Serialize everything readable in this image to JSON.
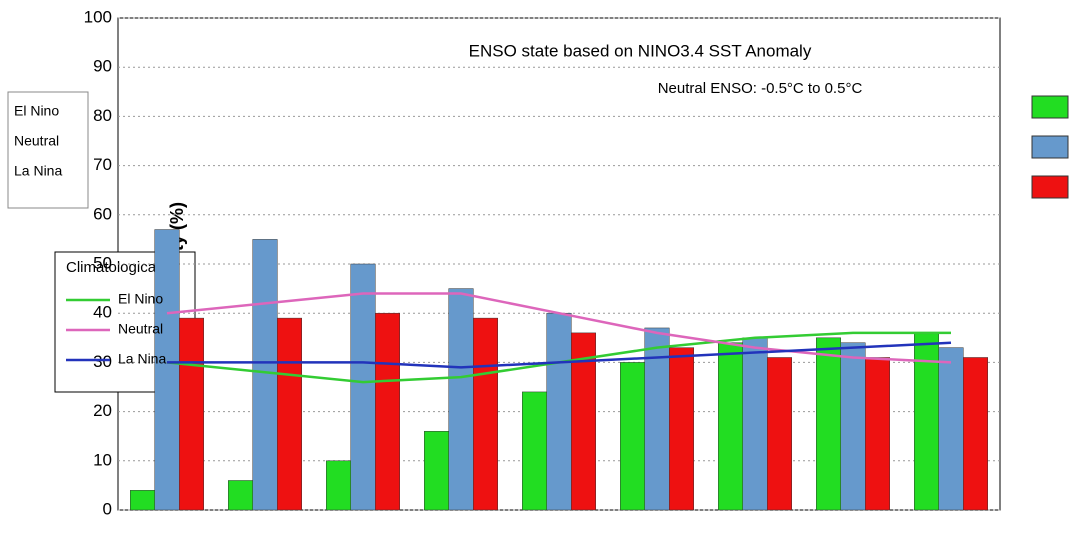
{
  "chart_data": {
    "type": "bar",
    "title": "ENSO state based on NINO3.4 SST Anomaly",
    "subtitle": "Neutral ENSO: -0.5°C to 0.5°C",
    "y_label": "Probability (%)",
    "climatology_legend_title": "Climatological",
    "categories": [
      null,
      null,
      null,
      null,
      null,
      null,
      null,
      null,
      null
    ],
    "ylim": [
      0,
      100
    ],
    "yticks": [
      0,
      10,
      20,
      30,
      40,
      50,
      60,
      70,
      80,
      90,
      100
    ],
    "grid": true,
    "series": [
      {
        "name": "El Nino",
        "color": "#22dd22",
        "kind": "bar",
        "values": [
          4,
          6,
          10,
          16,
          24,
          30,
          34,
          35,
          36
        ]
      },
      {
        "name": "Neutral",
        "color": "#6699cc",
        "kind": "bar",
        "values": [
          57,
          55,
          50,
          45,
          40,
          37,
          35,
          34,
          33
        ]
      },
      {
        "name": "La Nina",
        "color": "#ee1111",
        "kind": "bar",
        "values": [
          39,
          39,
          40,
          39,
          36,
          33,
          31,
          31,
          31
        ]
      },
      {
        "name": "El Nino",
        "color": "#33cc33",
        "kind": "line",
        "values": [
          30,
          28,
          26,
          27,
          30,
          33,
          35,
          36,
          36
        ]
      },
      {
        "name": "Neutral",
        "color": "#dd66bb",
        "kind": "line",
        "values": [
          40,
          42,
          44,
          44,
          40,
          36,
          33,
          31,
          30
        ]
      },
      {
        "name": "La Nina",
        "color": "#2233bb",
        "kind": "line",
        "values": [
          30,
          30,
          30,
          29,
          30,
          31,
          32,
          33,
          34
        ]
      }
    ]
  }
}
